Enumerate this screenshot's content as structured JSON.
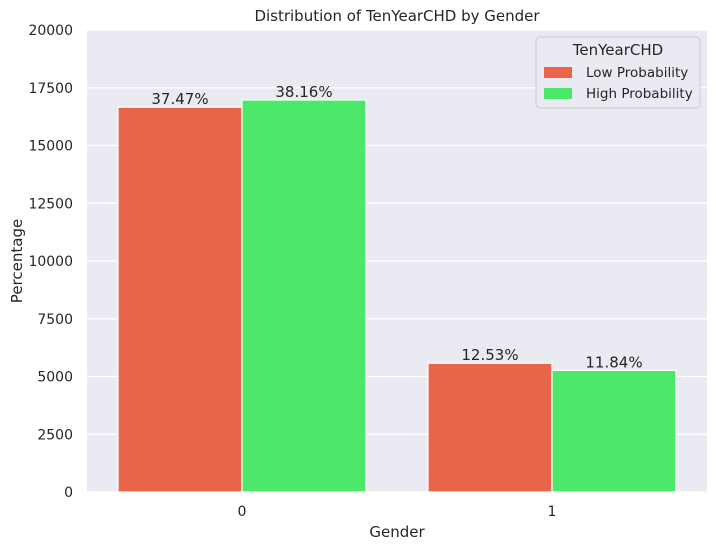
{
  "chart_data": {
    "type": "bar",
    "title": "Distribution of TenYearCHD by Gender",
    "xlabel": "Gender",
    "ylabel": "Percentage",
    "categories": [
      "0",
      "1"
    ],
    "ylim": [
      0,
      20000
    ],
    "yticks": [
      0,
      2500,
      5000,
      7500,
      10000,
      12500,
      15000,
      17500,
      20000
    ],
    "grid": true,
    "legend": {
      "title": "TenYearCHD",
      "placement": "top-right"
    },
    "series": [
      {
        "name": "Low Probability",
        "color": "#e8654a",
        "values": [
          16660,
          5575
        ],
        "labels": [
          "37.47%",
          "12.53%"
        ]
      },
      {
        "name": "High Probability",
        "color": "#4ce86a",
        "values": [
          16970,
          5265
        ],
        "labels": [
          "38.16%",
          "11.84%"
        ]
      }
    ]
  }
}
